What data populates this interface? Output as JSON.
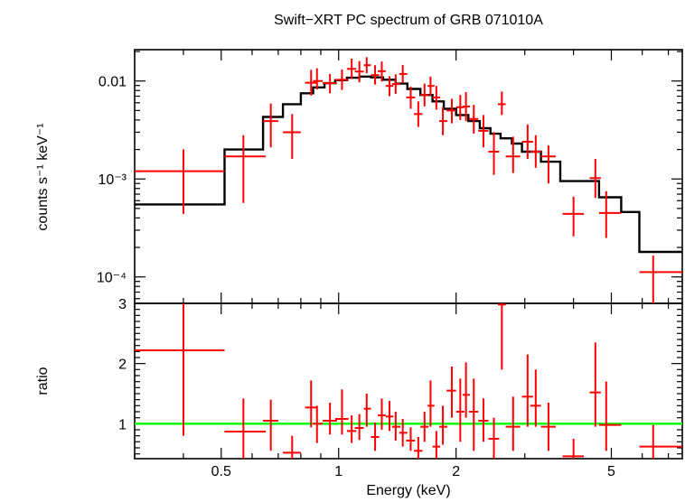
{
  "chart_data": {
    "type": "scatter",
    "title": "Swift−XRT PC spectrum of GRB 071010A",
    "xlabel": "Energy (keV)",
    "x_scale": "log",
    "xlim": [
      0.3,
      7.6
    ],
    "x_ticks": [
      {
        "v": 0.5,
        "label": "0.5"
      },
      {
        "v": 1,
        "label": "1"
      },
      {
        "v": 2,
        "label": "2"
      },
      {
        "v": 5,
        "label": "5"
      }
    ],
    "spectrum_panel": {
      "ylabel": "counts s⁻¹ keV⁻¹",
      "y_scale": "log",
      "ylim": [
        5.37e-05,
        0.0209
      ],
      "y_ticks": [
        {
          "v": 0.01,
          "label": "0.01"
        },
        {
          "v": 0.001,
          "label": "10⁻³"
        },
        {
          "v": 0.0001,
          "label": "10⁻⁴"
        }
      ],
      "data_color": "#ff0000",
      "data": [
        {
          "x": 0.4,
          "xlo": 0.3,
          "xhi": 0.51,
          "y": 0.0012,
          "ylo": 0.00044,
          "yhi": 0.002
        },
        {
          "x": 0.57,
          "xlo": 0.51,
          "xhi": 0.65,
          "y": 0.0017,
          "ylo": 0.00057,
          "yhi": 0.0028
        },
        {
          "x": 0.67,
          "xlo": 0.64,
          "xhi": 0.7,
          "y": 0.0039,
          "ylo": 0.0021,
          "yhi": 0.0059
        },
        {
          "x": 0.76,
          "xlo": 0.72,
          "xhi": 0.8,
          "y": 0.003,
          "ylo": 0.0016,
          "yhi": 0.0046
        },
        {
          "x": 0.85,
          "xlo": 0.82,
          "xhi": 0.88,
          "y": 0.0096,
          "ylo": 0.0071,
          "yhi": 0.013
        },
        {
          "x": 0.88,
          "xlo": 0.86,
          "xhi": 0.91,
          "y": 0.01,
          "ylo": 0.0082,
          "yhi": 0.0135
        },
        {
          "x": 0.95,
          "xlo": 0.91,
          "xhi": 0.99,
          "y": 0.0095,
          "ylo": 0.0075,
          "yhi": 0.0118
        },
        {
          "x": 1.02,
          "xlo": 0.98,
          "xhi": 1.06,
          "y": 0.0103,
          "ylo": 0.0081,
          "yhi": 0.0131
        },
        {
          "x": 1.08,
          "xlo": 1.05,
          "xhi": 1.11,
          "y": 0.0133,
          "ylo": 0.0105,
          "yhi": 0.0169
        },
        {
          "x": 1.13,
          "xlo": 1.1,
          "xhi": 1.16,
          "y": 0.0125,
          "ylo": 0.0097,
          "yhi": 0.016
        },
        {
          "x": 1.18,
          "xlo": 1.16,
          "xhi": 1.21,
          "y": 0.0145,
          "ylo": 0.012,
          "yhi": 0.0175
        },
        {
          "x": 1.24,
          "xlo": 1.21,
          "xhi": 1.27,
          "y": 0.0115,
          "ylo": 0.0092,
          "yhi": 0.0145
        },
        {
          "x": 1.29,
          "xlo": 1.26,
          "xhi": 1.32,
          "y": 0.0126,
          "ylo": 0.0099,
          "yhi": 0.0158
        },
        {
          "x": 1.35,
          "xlo": 1.32,
          "xhi": 1.38,
          "y": 0.0089,
          "ylo": 0.007,
          "yhi": 0.0112
        },
        {
          "x": 1.4,
          "xlo": 1.37,
          "xhi": 1.44,
          "y": 0.0093,
          "ylo": 0.0074,
          "yhi": 0.0117
        },
        {
          "x": 1.46,
          "xlo": 1.43,
          "xhi": 1.5,
          "y": 0.0118,
          "ylo": 0.0095,
          "yhi": 0.0146
        },
        {
          "x": 1.53,
          "xlo": 1.49,
          "xhi": 1.57,
          "y": 0.0068,
          "ylo": 0.0052,
          "yhi": 0.0088
        },
        {
          "x": 1.6,
          "xlo": 1.56,
          "xhi": 1.64,
          "y": 0.0046,
          "ylo": 0.0034,
          "yhi": 0.0062
        },
        {
          "x": 1.66,
          "xlo": 1.62,
          "xhi": 1.7,
          "y": 0.0072,
          "ylo": 0.0055,
          "yhi": 0.0094
        },
        {
          "x": 1.72,
          "xlo": 1.69,
          "xhi": 1.76,
          "y": 0.0089,
          "ylo": 0.0071,
          "yhi": 0.0111
        },
        {
          "x": 1.78,
          "xlo": 1.74,
          "xhi": 1.82,
          "y": 0.0068,
          "ylo": 0.0051,
          "yhi": 0.0089
        },
        {
          "x": 1.85,
          "xlo": 1.81,
          "xhi": 1.9,
          "y": 0.0039,
          "ylo": 0.0028,
          "yhi": 0.0054
        },
        {
          "x": 1.95,
          "xlo": 1.89,
          "xhi": 2.0,
          "y": 0.005,
          "ylo": 0.0037,
          "yhi": 0.0066
        },
        {
          "x": 2.05,
          "xlo": 2.0,
          "xhi": 2.1,
          "y": 0.0054,
          "ylo": 0.004,
          "yhi": 0.0072
        },
        {
          "x": 2.12,
          "xlo": 2.08,
          "xhi": 2.17,
          "y": 0.0055,
          "ylo": 0.0039,
          "yhi": 0.0077
        },
        {
          "x": 2.22,
          "xlo": 2.16,
          "xhi": 2.28,
          "y": 0.0041,
          "ylo": 0.0029,
          "yhi": 0.0057
        },
        {
          "x": 2.35,
          "xlo": 2.28,
          "xhi": 2.42,
          "y": 0.0031,
          "ylo": 0.0021,
          "yhi": 0.0045
        },
        {
          "x": 2.5,
          "xlo": 2.42,
          "xhi": 2.58,
          "y": 0.0019,
          "ylo": 0.0011,
          "yhi": 0.003
        },
        {
          "x": 2.62,
          "xlo": 2.56,
          "xhi": 2.68,
          "y": 0.0058,
          "ylo": 0.0045,
          "yhi": 0.0078
        },
        {
          "x": 2.8,
          "xlo": 2.68,
          "xhi": 2.92,
          "y": 0.0017,
          "ylo": 0.00115,
          "yhi": 0.0027
        },
        {
          "x": 3.05,
          "xlo": 2.95,
          "xhi": 3.15,
          "y": 0.0024,
          "ylo": 0.0016,
          "yhi": 0.0036
        },
        {
          "x": 3.2,
          "xlo": 3.1,
          "xhi": 3.3,
          "y": 0.0019,
          "ylo": 0.0013,
          "yhi": 0.0028
        },
        {
          "x": 3.45,
          "xlo": 3.3,
          "xhi": 3.6,
          "y": 0.0017,
          "ylo": 0.0009,
          "yhi": 0.0022
        },
        {
          "x": 4.0,
          "xlo": 3.75,
          "xhi": 4.25,
          "y": 0.00044,
          "ylo": 0.00026,
          "yhi": 0.00066
        },
        {
          "x": 4.55,
          "xlo": 4.4,
          "xhi": 4.7,
          "y": 0.00102,
          "ylo": 0.00064,
          "yhi": 0.0016
        },
        {
          "x": 4.85,
          "xlo": 4.65,
          "xhi": 5.3,
          "y": 0.00045,
          "ylo": 0.00025,
          "yhi": 0.00075
        },
        {
          "x": 6.4,
          "xlo": 5.9,
          "xhi": 7.6,
          "y": 0.000112,
          "ylo": 5.37e-05,
          "yhi": 0.000165
        }
      ],
      "model_color": "#000000",
      "model_steps": [
        {
          "x0": 0.3,
          "x1": 0.51,
          "y": 0.00055
        },
        {
          "x0": 0.51,
          "x1": 0.64,
          "y": 0.002
        },
        {
          "x0": 0.64,
          "x1": 0.72,
          "y": 0.0043
        },
        {
          "x0": 0.72,
          "x1": 0.8,
          "y": 0.0058
        },
        {
          "x0": 0.8,
          "x1": 0.86,
          "y": 0.0075
        },
        {
          "x0": 0.86,
          "x1": 0.92,
          "y": 0.0086
        },
        {
          "x0": 0.92,
          "x1": 0.98,
          "y": 0.0095
        },
        {
          "x0": 0.98,
          "x1": 1.05,
          "y": 0.0102
        },
        {
          "x0": 1.05,
          "x1": 1.13,
          "y": 0.0108
        },
        {
          "x0": 1.13,
          "x1": 1.21,
          "y": 0.0111
        },
        {
          "x0": 1.21,
          "x1": 1.3,
          "y": 0.0109
        },
        {
          "x0": 1.3,
          "x1": 1.4,
          "y": 0.0103
        },
        {
          "x0": 1.4,
          "x1": 1.5,
          "y": 0.0094
        },
        {
          "x0": 1.5,
          "x1": 1.62,
          "y": 0.0083
        },
        {
          "x0": 1.62,
          "x1": 1.74,
          "y": 0.0072
        },
        {
          "x0": 1.74,
          "x1": 1.86,
          "y": 0.0062
        },
        {
          "x0": 1.86,
          "x1": 2.0,
          "y": 0.0052
        },
        {
          "x0": 2.0,
          "x1": 2.15,
          "y": 0.0045
        },
        {
          "x0": 2.15,
          "x1": 2.3,
          "y": 0.0039
        },
        {
          "x0": 2.3,
          "x1": 2.45,
          "y": 0.0033
        },
        {
          "x0": 2.45,
          "x1": 2.6,
          "y": 0.0029
        },
        {
          "x0": 2.6,
          "x1": 2.78,
          "y": 0.0026
        },
        {
          "x0": 2.78,
          "x1": 2.95,
          "y": 0.0023
        },
        {
          "x0": 2.95,
          "x1": 3.3,
          "y": 0.0019
        },
        {
          "x0": 3.3,
          "x1": 3.7,
          "y": 0.0015
        },
        {
          "x0": 3.7,
          "x1": 4.65,
          "y": 0.00095
        },
        {
          "x0": 4.65,
          "x1": 5.3,
          "y": 0.00065
        },
        {
          "x0": 5.3,
          "x1": 5.9,
          "y": 0.00046
        },
        {
          "x0": 5.9,
          "x1": 7.6,
          "y": 0.00018
        }
      ]
    },
    "ratio_panel": {
      "ylabel": "ratio",
      "y_scale": "linear",
      "ylim": [
        0.42,
        3.0
      ],
      "y_ticks": [
        {
          "v": 1,
          "label": "1"
        },
        {
          "v": 2,
          "label": "2"
        },
        {
          "v": 3,
          "label": "3"
        }
      ],
      "reference_line": {
        "y": 1,
        "color": "#00ff00"
      },
      "data_color": "#ff0000",
      "data": [
        {
          "x": 0.4,
          "xlo": 0.3,
          "xhi": 0.51,
          "y": 2.22,
          "ylo": 0.8,
          "yhi": 3.0
        },
        {
          "x": 0.57,
          "xlo": 0.51,
          "xhi": 0.65,
          "y": 0.87,
          "ylo": 0.42,
          "yhi": 1.42
        },
        {
          "x": 0.67,
          "xlo": 0.64,
          "xhi": 0.7,
          "y": 1.05,
          "ylo": 0.55,
          "yhi": 1.4
        },
        {
          "x": 0.76,
          "xlo": 0.72,
          "xhi": 0.8,
          "y": 0.52,
          "ylo": 0.42,
          "yhi": 0.8
        },
        {
          "x": 0.85,
          "xlo": 0.82,
          "xhi": 0.88,
          "y": 1.27,
          "ylo": 0.94,
          "yhi": 1.72
        },
        {
          "x": 0.88,
          "xlo": 0.86,
          "xhi": 0.91,
          "y": 1.0,
          "ylo": 0.68,
          "yhi": 1.3
        },
        {
          "x": 0.95,
          "xlo": 0.91,
          "xhi": 0.99,
          "y": 1.05,
          "ylo": 0.82,
          "yhi": 1.35
        },
        {
          "x": 1.02,
          "xlo": 0.98,
          "xhi": 1.06,
          "y": 1.08,
          "ylo": 0.82,
          "yhi": 1.57
        },
        {
          "x": 1.08,
          "xlo": 1.05,
          "xhi": 1.11,
          "y": 0.88,
          "ylo": 0.68,
          "yhi": 1.14
        },
        {
          "x": 1.13,
          "xlo": 1.1,
          "xhi": 1.16,
          "y": 0.93,
          "ylo": 0.73,
          "yhi": 1.16
        },
        {
          "x": 1.18,
          "xlo": 1.16,
          "xhi": 1.21,
          "y": 1.25,
          "ylo": 0.95,
          "yhi": 1.5
        },
        {
          "x": 1.24,
          "xlo": 1.21,
          "xhi": 1.27,
          "y": 0.78,
          "ylo": 0.55,
          "yhi": 1.02
        },
        {
          "x": 1.29,
          "xlo": 1.26,
          "xhi": 1.32,
          "y": 1.14,
          "ylo": 0.9,
          "yhi": 1.42
        },
        {
          "x": 1.35,
          "xlo": 1.32,
          "xhi": 1.38,
          "y": 1.12,
          "ylo": 0.88,
          "yhi": 1.38
        },
        {
          "x": 1.4,
          "xlo": 1.37,
          "xhi": 1.44,
          "y": 0.95,
          "ylo": 0.72,
          "yhi": 1.2
        },
        {
          "x": 1.46,
          "xlo": 1.43,
          "xhi": 1.5,
          "y": 0.85,
          "ylo": 0.62,
          "yhi": 1.08
        },
        {
          "x": 1.53,
          "xlo": 1.49,
          "xhi": 1.57,
          "y": 0.72,
          "ylo": 0.55,
          "yhi": 0.94
        },
        {
          "x": 1.6,
          "xlo": 1.56,
          "xhi": 1.64,
          "y": 0.55,
          "ylo": 0.42,
          "yhi": 0.78
        },
        {
          "x": 1.66,
          "xlo": 1.62,
          "xhi": 1.7,
          "y": 0.95,
          "ylo": 0.7,
          "yhi": 1.2
        },
        {
          "x": 1.72,
          "xlo": 1.69,
          "xhi": 1.76,
          "y": 1.3,
          "ylo": 0.95,
          "yhi": 1.72
        },
        {
          "x": 1.78,
          "xlo": 1.74,
          "xhi": 1.82,
          "y": 0.62,
          "ylo": 0.42,
          "yhi": 0.88
        },
        {
          "x": 1.85,
          "xlo": 1.81,
          "xhi": 1.9,
          "y": 0.95,
          "ylo": 0.65,
          "yhi": 1.3
        },
        {
          "x": 1.95,
          "xlo": 1.89,
          "xhi": 2.0,
          "y": 1.55,
          "ylo": 1.1,
          "yhi": 1.95
        },
        {
          "x": 2.05,
          "xlo": 2.0,
          "xhi": 2.1,
          "y": 1.2,
          "ylo": 0.7,
          "yhi": 1.75
        },
        {
          "x": 2.12,
          "xlo": 2.08,
          "xhi": 2.17,
          "y": 1.48,
          "ylo": 1.1,
          "yhi": 2.02
        },
        {
          "x": 2.22,
          "xlo": 2.16,
          "xhi": 2.28,
          "y": 1.2,
          "ylo": 0.55,
          "yhi": 1.75
        },
        {
          "x": 2.35,
          "xlo": 2.28,
          "xhi": 2.42,
          "y": 1.05,
          "ylo": 0.7,
          "yhi": 1.42
        },
        {
          "x": 2.5,
          "xlo": 2.42,
          "xhi": 2.58,
          "y": 0.75,
          "ylo": 0.42,
          "yhi": 1.1
        },
        {
          "x": 2.62,
          "xlo": 2.56,
          "xhi": 2.68,
          "y": 2.98,
          "ylo": 1.9,
          "yhi": 3.0
        },
        {
          "x": 2.8,
          "xlo": 2.68,
          "xhi": 2.92,
          "y": 0.95,
          "ylo": 0.55,
          "yhi": 1.45
        },
        {
          "x": 3.05,
          "xlo": 2.95,
          "xhi": 3.15,
          "y": 1.45,
          "ylo": 0.95,
          "yhi": 2.15
        },
        {
          "x": 3.2,
          "xlo": 3.1,
          "xhi": 3.3,
          "y": 1.3,
          "ylo": 0.95,
          "yhi": 1.9
        },
        {
          "x": 3.45,
          "xlo": 3.3,
          "xhi": 3.6,
          "y": 0.95,
          "ylo": 0.55,
          "yhi": 1.35
        },
        {
          "x": 4.0,
          "xlo": 3.75,
          "xhi": 4.25,
          "y": 0.46,
          "ylo": 0.42,
          "yhi": 0.75
        },
        {
          "x": 4.55,
          "xlo": 4.4,
          "xhi": 4.7,
          "y": 1.52,
          "ylo": 0.95,
          "yhi": 2.35
        },
        {
          "x": 4.85,
          "xlo": 4.65,
          "xhi": 5.3,
          "y": 0.98,
          "ylo": 0.55,
          "yhi": 1.7
        },
        {
          "x": 6.4,
          "xlo": 5.9,
          "xhi": 7.6,
          "y": 0.62,
          "ylo": 0.42,
          "yhi": 0.98
        }
      ]
    }
  }
}
